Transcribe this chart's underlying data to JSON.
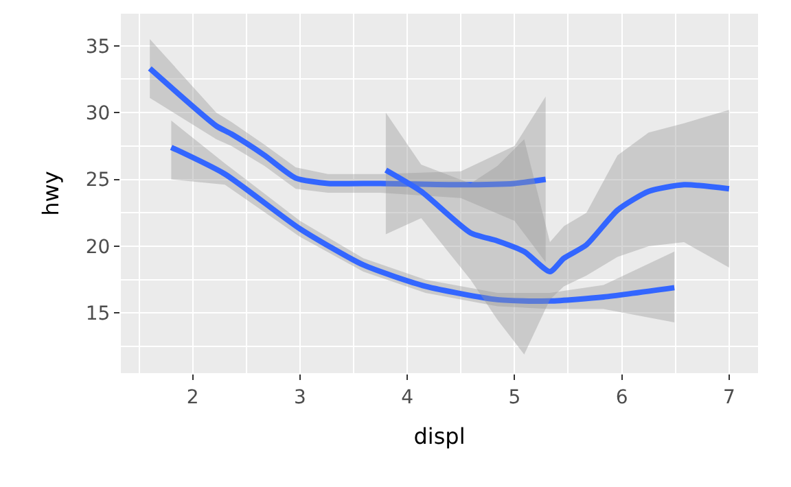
{
  "chart_data": {
    "type": "line",
    "xlabel": "displ",
    "ylabel": "hwy",
    "xlim": [
      1.33,
      7.27
    ],
    "xticks": [
      2,
      3,
      4,
      5,
      6,
      7
    ],
    "ylim": [
      10.5,
      37.4
    ],
    "yticks": [
      15,
      20,
      25,
      30,
      35
    ],
    "grid": true,
    "line_style": "solid",
    "series": [
      {
        "color": "#3366ff",
        "x": [
          1.6,
          2.22,
          2.36,
          2.67,
          2.96,
          3.26,
          3.75,
          4.5,
          5.0,
          5.29
        ],
        "values": [
          33.3,
          29.0,
          28.4,
          26.8,
          25.1,
          24.7,
          24.7,
          24.6,
          24.7,
          25.0
        ],
        "lower": [
          31.1,
          28.0,
          27.5,
          26.0,
          24.3,
          24.0,
          24.0,
          23.6,
          21.9,
          18.8
        ],
        "upper": [
          35.5,
          30.0,
          29.3,
          27.6,
          25.9,
          25.4,
          25.4,
          25.6,
          27.5,
          31.2
        ]
      },
      {
        "color": "#3366ff",
        "x": [
          1.8,
          2.3,
          3.0,
          3.59,
          4.17,
          4.84,
          5.33,
          5.83,
          6.49
        ],
        "values": [
          27.4,
          25.4,
          21.3,
          18.6,
          17.0,
          16.0,
          15.9,
          16.2,
          16.9
        ],
        "lower": [
          25.0,
          24.6,
          20.7,
          18.1,
          16.5,
          15.5,
          15.3,
          15.3,
          14.3
        ],
        "upper": [
          29.4,
          26.2,
          21.9,
          19.1,
          17.5,
          16.5,
          16.5,
          17.1,
          19.6
        ]
      },
      {
        "color": "#3366ff",
        "x": [
          3.8,
          4.13,
          4.59,
          4.84,
          5.09,
          5.33,
          5.46,
          5.67,
          5.96,
          6.25,
          6.58,
          7.0
        ],
        "values": [
          25.7,
          24.1,
          21.0,
          20.4,
          19.6,
          18.1,
          19.1,
          20.1,
          22.7,
          24.1,
          24.6,
          24.3
        ],
        "lower": [
          20.9,
          22.1,
          17.5,
          14.5,
          11.9,
          16.0,
          17.0,
          17.8,
          19.2,
          20.0,
          20.3,
          18.4
        ],
        "upper": [
          30.0,
          26.1,
          24.7,
          26.0,
          28.0,
          20.3,
          21.5,
          22.5,
          26.8,
          28.5,
          29.2,
          30.2
        ]
      }
    ]
  }
}
